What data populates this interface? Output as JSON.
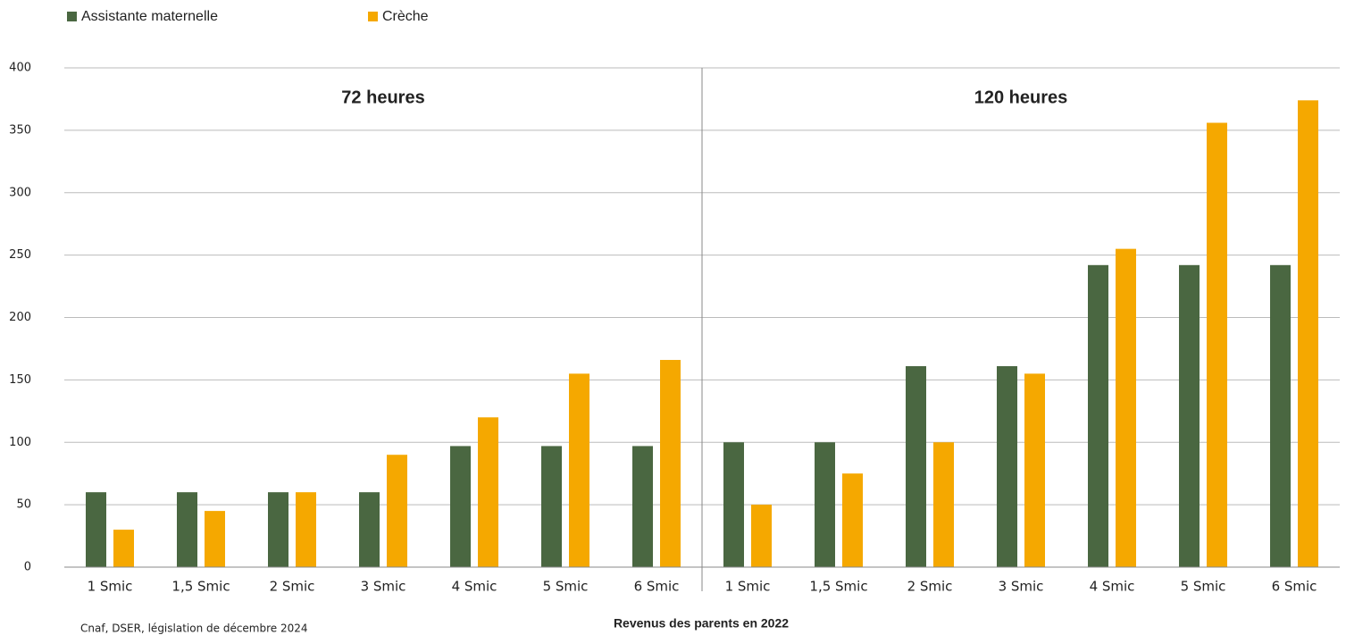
{
  "chart_data": {
    "type": "bar",
    "series": [
      {
        "name": "Assistante maternelle",
        "color": "#4a6741"
      },
      {
        "name": "Crèche",
        "color": "#f5a800"
      }
    ],
    "panels": [
      {
        "title": "72 heures",
        "categories": [
          "1 Smic",
          "1,5 Smic",
          "2 Smic",
          "3 Smic",
          "4 Smic",
          "5 Smic",
          "6 Smic"
        ],
        "values": [
          [
            60,
            60,
            60,
            60,
            97,
            97,
            97
          ],
          [
            30,
            45,
            60,
            90,
            120,
            155,
            166
          ]
        ]
      },
      {
        "title": "120 heures",
        "categories": [
          "1 Smic",
          "1,5 Smic",
          "2 Smic",
          "3 Smic",
          "4 Smic",
          "5 Smic",
          "6 Smic"
        ],
        "values": [
          [
            100,
            100,
            161,
            161,
            242,
            242,
            242
          ],
          [
            50,
            75,
            100,
            155,
            255,
            356,
            374
          ]
        ]
      }
    ],
    "x_label": "Revenus des parents en 2022",
    "source": "Cnaf, DSER, législation de décembre 2024",
    "ylim": [
      0,
      400
    ],
    "yticks": [
      0,
      50,
      100,
      150,
      200,
      250,
      300,
      350,
      400
    ],
    "grid": true
  }
}
